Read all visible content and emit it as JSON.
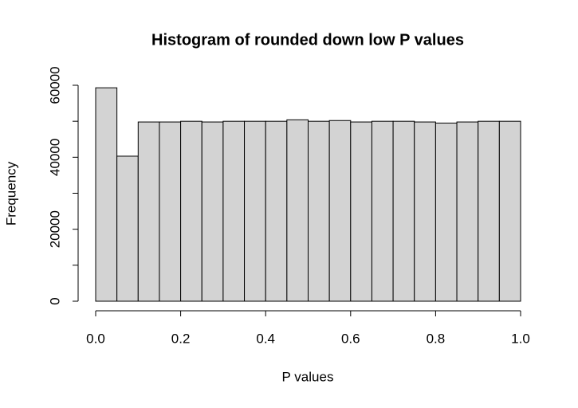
{
  "chart_data": {
    "type": "histogram",
    "title": "Histogram of rounded down low P values",
    "x_label": "P values",
    "y_label": "Frequency",
    "bins": [
      0,
      0.05,
      0.1,
      0.15,
      0.2,
      0.25,
      0.3,
      0.35,
      0.4,
      0.45,
      0.5,
      0.55,
      0.6,
      0.65,
      0.7,
      0.75,
      0.8,
      0.85,
      0.9,
      0.95,
      1
    ],
    "values": [
      59300,
      40300,
      49800,
      49800,
      50000,
      49800,
      50000,
      50000,
      50000,
      50400,
      50000,
      50200,
      49800,
      50000,
      50000,
      49800,
      49500,
      49800,
      50000,
      50000
    ],
    "color": "#d3d3d3",
    "xlim": [
      0,
      1
    ],
    "xticks": [
      {
        "value": 0,
        "label": "0.0"
      },
      0.2,
      0.4,
      0.6,
      0.8,
      {
        "value": 1,
        "label": "1.0"
      }
    ],
    "ylim": [
      0,
      60000
    ],
    "yticks": [
      0,
      20000,
      40000,
      60000
    ],
    "yminor_ticks": [
      10000,
      30000,
      50000
    ]
  }
}
